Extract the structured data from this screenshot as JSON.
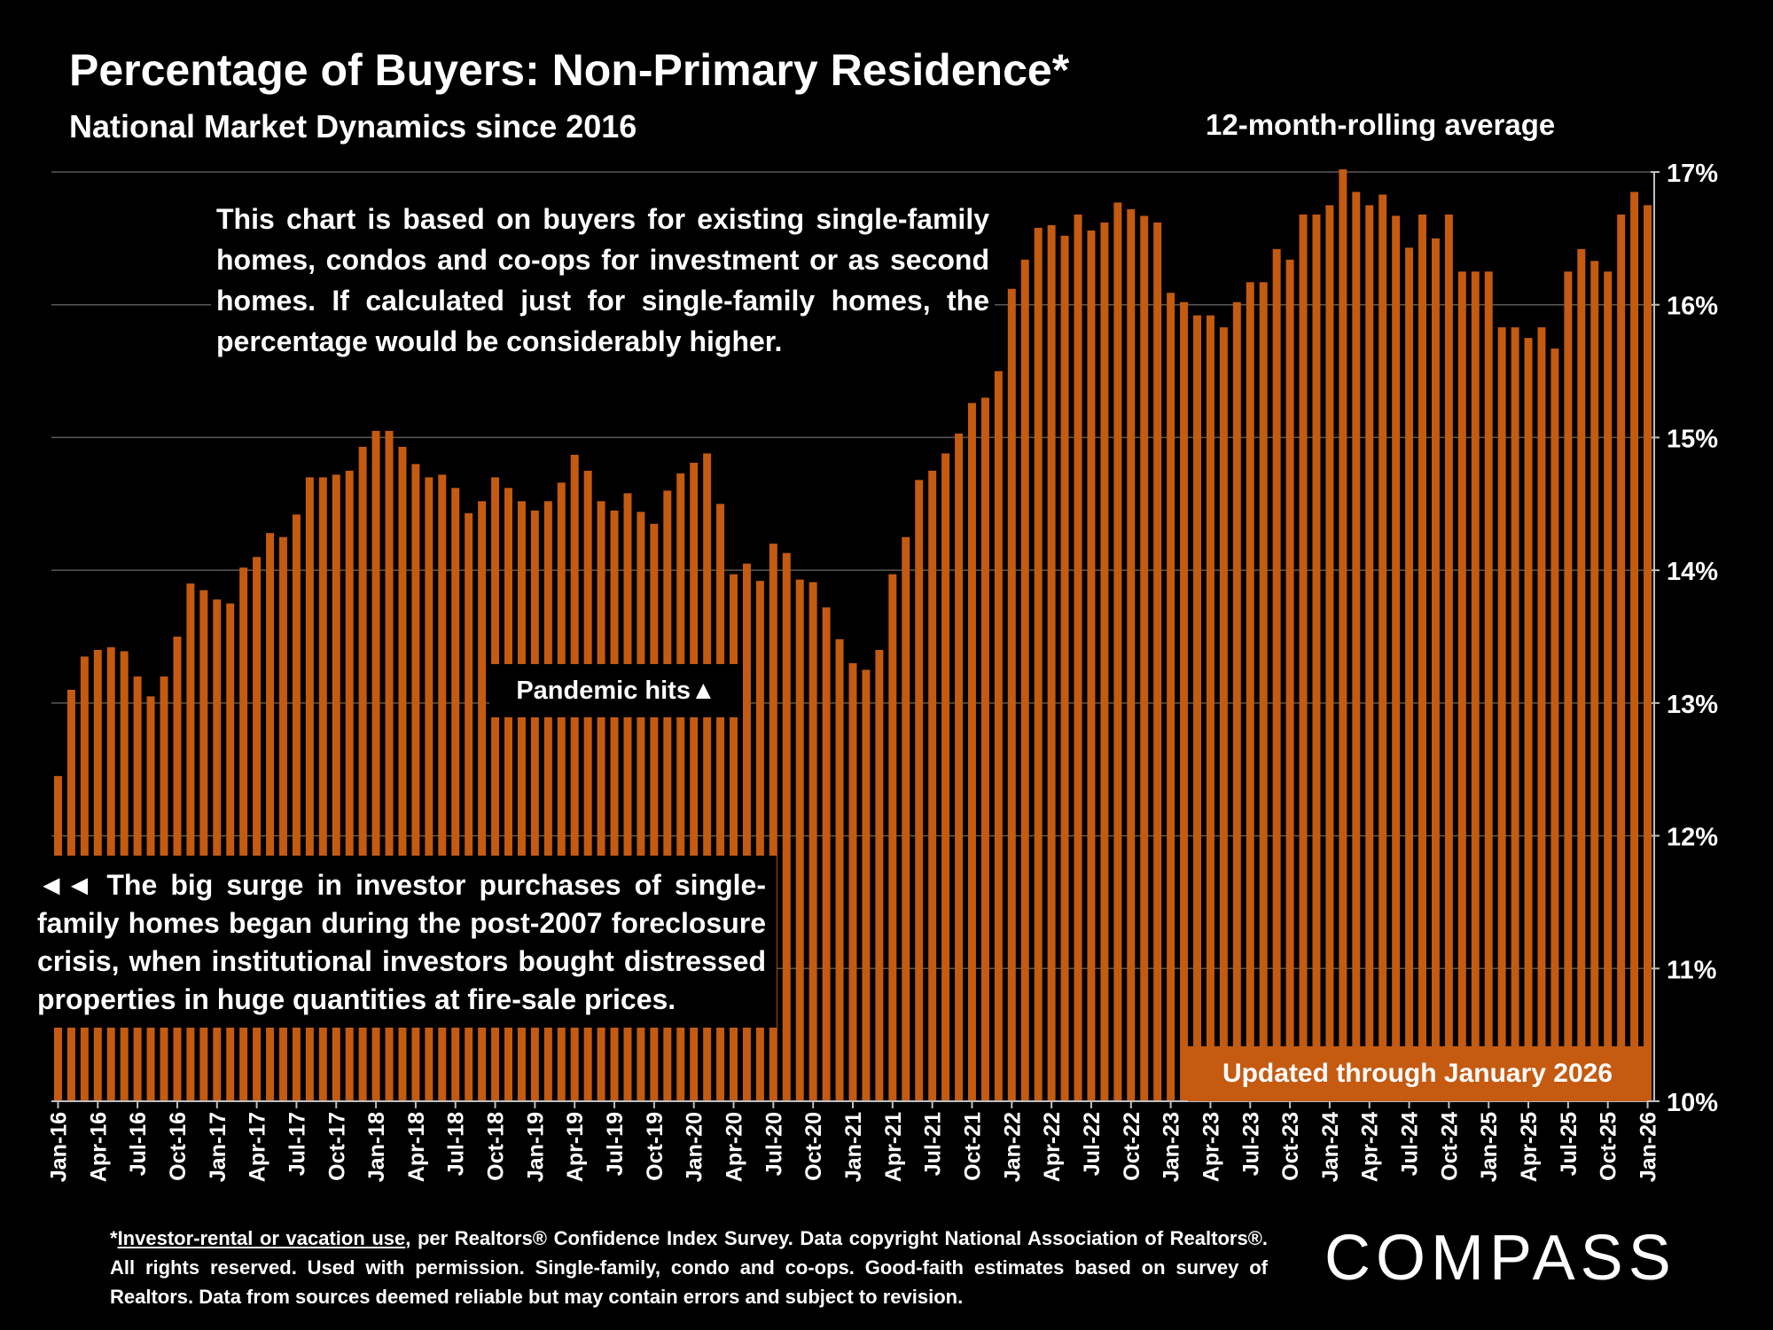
{
  "header": {
    "title": "Percentage of Buyers: Non-Primary Residence*",
    "subtitle": "National Market Dynamics since 2016",
    "rolling_label": "12-month-rolling average"
  },
  "annotations": {
    "top_note": "This chart is based on buyers for existing single-family homes, condos and co-ops for investment or as second homes. If calculated just for single-family homes, the percentage would be considerably higher.",
    "bottom_note": "◄◄ The big surge in investor purchases of single-family homes began during the post-2007 foreclosure crisis, when institutional investors bought distressed properties in huge quantities at fire-sale prices.",
    "pandemic": "Pandemic hits▲",
    "updated": "Updated through January 2026"
  },
  "footnote": {
    "link_text": "Investor-rental or vacation use",
    "text": ", per Realtors® Confidence Index Survey. Data copyright National Association of Realtors®. All rights reserved. Used with permission. Single-family, condo and co-ops. Good-faith estimates based on survey of Realtors. Data from sources deemed reliable but may contain errors and subject to revision.",
    "prefix": "*"
  },
  "logo": {
    "text": "COMPASS"
  },
  "colors": {
    "bar": "#c55a11",
    "background": "#000000",
    "text": "#ffffff",
    "grid": "#595959"
  },
  "chart_data": {
    "type": "bar",
    "title": "Percentage of Buyers: Non-Primary Residence*",
    "ylabel": "",
    "xlabel": "",
    "ylim": [
      10,
      17
    ],
    "y_ticks": [
      "10%",
      "11%",
      "12%",
      "13%",
      "14%",
      "15%",
      "16%",
      "17%"
    ],
    "y_axis_side": "right",
    "grid": true,
    "start_month": "Jan-16",
    "end_month": "Jan-26",
    "x_tick_labels": [
      "Jan-16",
      "Apr-16",
      "Jul-16",
      "Oct-16",
      "Jan-17",
      "Apr-17",
      "Jul-17",
      "Oct-17",
      "Jan-18",
      "Apr-18",
      "Jul-18",
      "Oct-18",
      "Jan-19",
      "Apr-19",
      "Jul-19",
      "Oct-19",
      "Jan-20",
      "Apr-20",
      "Jul-20",
      "Oct-20",
      "Jan-21",
      "Apr-21",
      "Jul-21",
      "Oct-21",
      "Jan-22",
      "Apr-22",
      "Jul-22",
      "Oct-22",
      "Jan-23",
      "Apr-23",
      "Jul-23",
      "Oct-23",
      "Jan-24",
      "Apr-24",
      "Jul-24",
      "Oct-24",
      "Jan-25",
      "Apr-25",
      "Jul-25",
      "Oct-25",
      "Jan-26"
    ],
    "values": [
      12.45,
      13.1,
      13.35,
      13.4,
      13.42,
      13.39,
      13.2,
      13.05,
      13.2,
      13.5,
      13.9,
      13.85,
      13.78,
      13.75,
      14.02,
      14.1,
      14.28,
      14.25,
      14.42,
      14.7,
      14.7,
      14.72,
      14.75,
      14.93,
      15.05,
      15.05,
      14.93,
      14.8,
      14.7,
      14.72,
      14.62,
      14.43,
      14.52,
      14.7,
      14.62,
      14.52,
      14.45,
      14.52,
      14.66,
      14.87,
      14.75,
      14.52,
      14.45,
      14.58,
      14.44,
      14.35,
      14.6,
      14.73,
      14.81,
      14.88,
      14.5,
      13.97,
      14.05,
      13.92,
      14.2,
      14.13,
      13.93,
      13.91,
      13.72,
      13.48,
      13.3,
      13.25,
      13.4,
      13.97,
      14.25,
      14.68,
      14.75,
      14.88,
      15.03,
      15.26,
      15.3,
      15.5,
      16.12,
      16.34,
      16.58,
      16.6,
      16.52,
      16.68,
      16.56,
      16.62,
      16.77,
      16.72,
      16.67,
      16.62,
      16.09,
      16.02,
      15.92,
      15.92,
      15.83,
      16.02,
      16.17,
      16.17,
      16.42,
      16.34,
      16.68,
      16.68,
      16.75,
      17.02,
      16.85,
      16.75,
      16.83,
      16.67,
      16.43,
      16.68,
      16.5,
      16.68,
      16.25,
      16.25,
      16.25,
      15.83,
      15.83,
      15.75,
      15.83,
      15.67,
      16.25,
      16.42,
      16.33,
      16.25,
      16.68,
      16.85,
      16.75
    ]
  }
}
